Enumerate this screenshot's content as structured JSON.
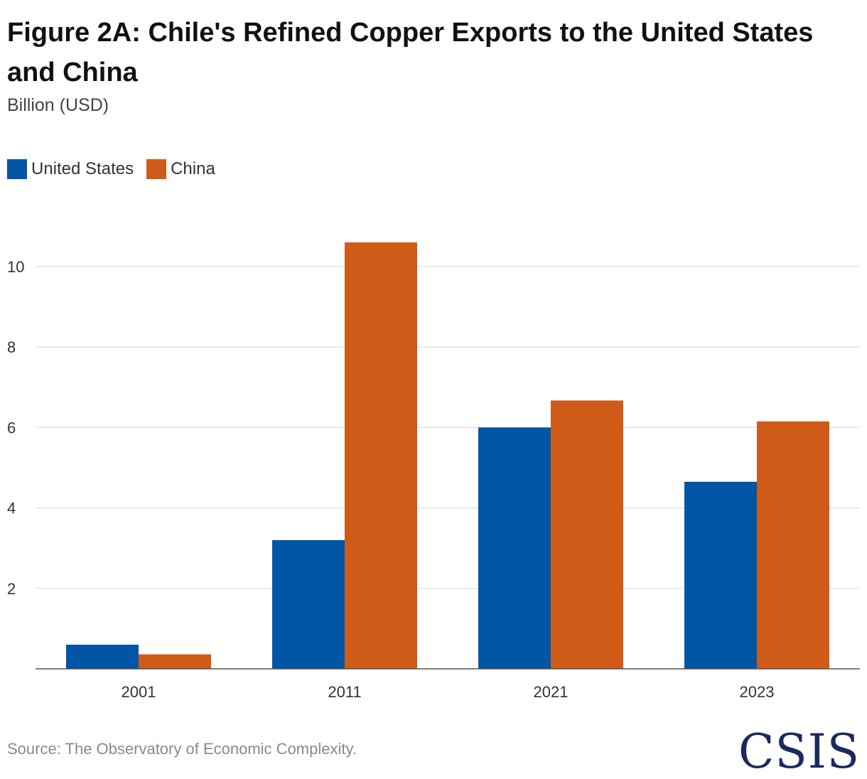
{
  "title": "Figure 2A: Chile's Refined Copper Exports to the United States and China",
  "subtitle": "Billion (USD)",
  "source": "Source: The Observatory of Economic Complexity.",
  "logo": "CSIS",
  "colors": {
    "united_states": "#0055a5",
    "china": "#d05a18",
    "grid": "#dedede",
    "axis": "#555555"
  },
  "chart_data": {
    "type": "bar",
    "categories": [
      "2001",
      "2011",
      "2021",
      "2023"
    ],
    "series": [
      {
        "name": "United States",
        "values": [
          0.6,
          3.2,
          6.0,
          4.65
        ]
      },
      {
        "name": "China",
        "values": [
          0.36,
          10.6,
          6.67,
          6.15
        ]
      }
    ],
    "yticks": [
      2,
      4,
      6,
      8,
      10
    ],
    "ylim": [
      0,
      11
    ],
    "title": "Figure 2A: Chile's Refined Copper Exports to the United States and China",
    "ylabel": "Billion (USD)",
    "xlabel": "",
    "legend": "top-left",
    "grid": true
  }
}
